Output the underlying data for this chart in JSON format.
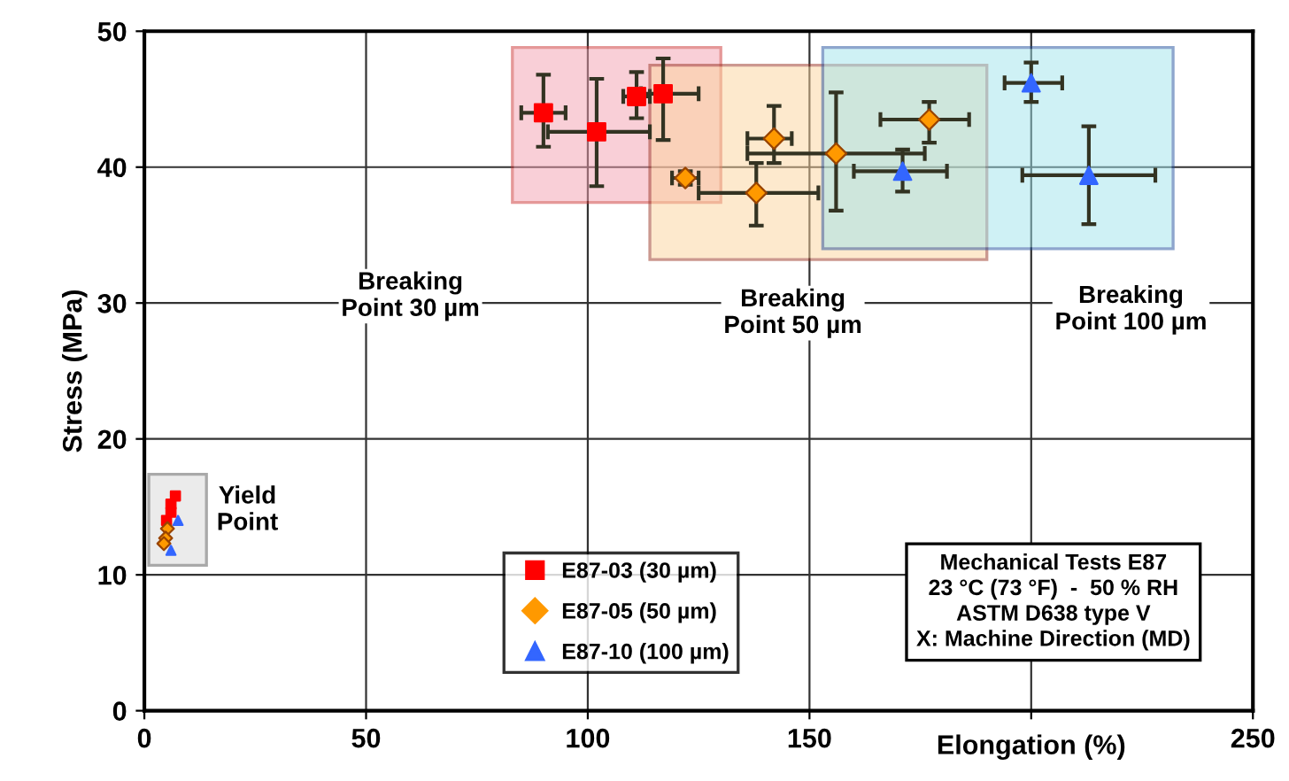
{
  "chart_data": {
    "type": "scatter",
    "xlabel": "Elongation (%)",
    "ylabel": "Stress (MPa)",
    "xlim": [
      0,
      250
    ],
    "ylim": [
      0,
      50
    ],
    "xticks": [
      0,
      50,
      100,
      150,
      {
        "value": 200,
        "label": null
      },
      250
    ],
    "yticks": [
      0,
      10,
      20,
      30,
      40,
      50
    ],
    "grid": true,
    "legend": "bottom",
    "series": [
      {
        "name": "E87-03 (30 µm)",
        "color": "#ff0000",
        "marker": "square",
        "x": [
          90,
          102,
          111,
          117
        ],
        "values": [
          44.0,
          42.6,
          45.2,
          45.4
        ],
        "xerrors": [
          [
            85,
            95
          ],
          [
            91,
            114
          ],
          [
            108,
            114
          ],
          [
            112,
            125
          ]
        ],
        "errors": [
          [
            41.5,
            46.8
          ],
          [
            38.6,
            46.5
          ],
          [
            43.6,
            47.0
          ],
          [
            42.0,
            48.0
          ]
        ]
      },
      {
        "name": "E87-05 (50 µm)",
        "color": "#ff9900",
        "marker": "diamond",
        "x": [
          122,
          138,
          142,
          156,
          177
        ],
        "values": [
          39.2,
          38.1,
          42.1,
          41.0,
          43.5
        ],
        "xerrors": [
          [
            119,
            125
          ],
          [
            125,
            152
          ],
          [
            136,
            146
          ],
          [
            136,
            176
          ],
          [
            166,
            186
          ]
        ],
        "errors": [
          [
            38.7,
            39.7
          ],
          [
            35.7,
            40.3
          ],
          [
            40.3,
            44.5
          ],
          [
            36.8,
            45.5
          ],
          [
            41.8,
            44.8
          ]
        ]
      },
      {
        "name": "E87-10 (100 µm)",
        "color": "#3366ff",
        "marker": "triangle",
        "x": [
          171,
          200,
          213
        ],
        "values": [
          39.7,
          46.2,
          39.4
        ],
        "xerrors": [
          [
            160,
            181
          ],
          [
            194,
            207
          ],
          [
            198,
            228
          ]
        ],
        "errors": [
          [
            38.2,
            41.3
          ],
          [
            44.8,
            47.7
          ],
          [
            35.8,
            43.0
          ]
        ]
      },
      {
        "color": "#ff0000",
        "marker": "square",
        "x": [
          7,
          6,
          6,
          5
        ],
        "values": [
          15.8,
          15.2,
          14.6,
          14.0
        ]
      },
      {
        "color": "#ff9900",
        "marker": "diamond",
        "x": [
          5.2,
          4.8,
          4.4
        ],
        "values": [
          13.4,
          12.7,
          12.3
        ]
      },
      {
        "color": "#3366ff",
        "marker": "triangle",
        "x": [
          7.6,
          6
        ],
        "values": [
          14.0,
          11.8
        ]
      }
    ],
    "annotations": [
      "Breaking\nPoint 30 µm",
      "Breaking\nPoint 50 µm",
      "Breaking\nPoint 100 µm",
      "Yield\nPoint",
      "Mechanical Tests E87\n23 °C (73 °F)  -  50 % RH\nASTM D638 type V\nX: Machine Direction (MD)"
    ]
  }
}
